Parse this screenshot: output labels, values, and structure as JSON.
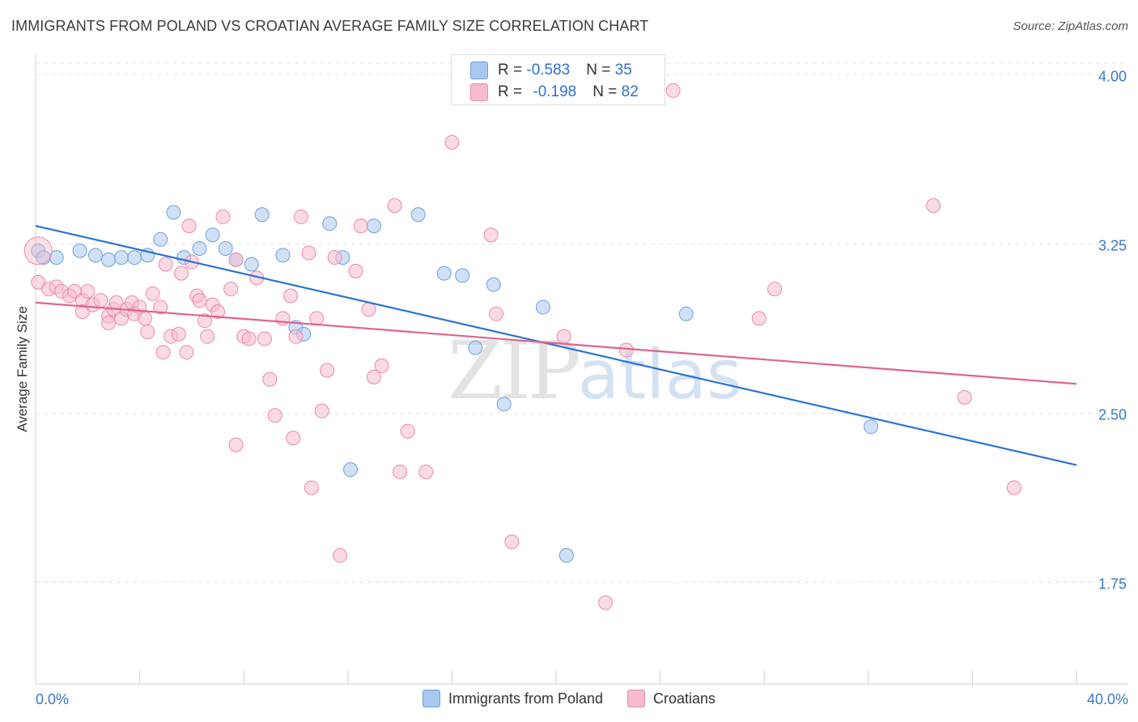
{
  "title": "IMMIGRANTS FROM POLAND VS CROATIAN AVERAGE FAMILY SIZE CORRELATION CHART",
  "source": "Source: ZipAtlas.com",
  "watermark": {
    "part1": "ZIP",
    "part2": "atlas"
  },
  "stats": [
    {
      "r_label": "R = ",
      "r_value": "-0.583",
      "n_label": "N = ",
      "n_value": "35"
    },
    {
      "r_label": "R = ",
      "r_value": "-0.198",
      "n_label": "N = ",
      "n_value": "82"
    }
  ],
  "colors": {
    "poland_fill": "#a9c8ef",
    "poland_stroke": "#6e9fde",
    "poland_line": "#2b73d2",
    "croatian_fill": "#f5bccf",
    "croatian_stroke": "#e98aaa",
    "croatian_line": "#e0628f",
    "tick_label": "#3b78cc",
    "grid": "#e3e3e3"
  },
  "chart_data": {
    "type": "scatter",
    "title": "IMMIGRANTS FROM POLAND VS CROATIAN AVERAGE FAMILY SIZE CORRELATION CHART",
    "xlabel": "",
    "ylabel": "Average Family Size",
    "xlim": [
      0,
      40
    ],
    "ylim": [
      1.3,
      4.08
    ],
    "x_tick_labels": [
      "0.0%",
      "40.0%"
    ],
    "y_ticks": [
      1.75,
      2.5,
      3.25,
      4.0
    ],
    "y_tick_labels": [
      "1.75",
      "2.50",
      "3.25",
      "4.00"
    ],
    "grid": "horizontal dashed",
    "legend": "bottom-center",
    "series": [
      {
        "name": "Immigrants from Poland",
        "color": "#a9c8ef",
        "trend": {
          "x": [
            0,
            40
          ],
          "y": [
            3.33,
            2.27
          ]
        },
        "points": [
          [
            0.1,
            3.22
          ],
          [
            0.8,
            3.19
          ],
          [
            1.7,
            3.22
          ],
          [
            2.3,
            3.2
          ],
          [
            2.8,
            3.18
          ],
          [
            3.3,
            3.19
          ],
          [
            3.8,
            3.19
          ],
          [
            4.3,
            3.2
          ],
          [
            4.8,
            3.27
          ],
          [
            5.3,
            3.39
          ],
          [
            5.7,
            3.19
          ],
          [
            6.3,
            3.23
          ],
          [
            6.8,
            3.29
          ],
          [
            7.3,
            3.23
          ],
          [
            7.7,
            3.18
          ],
          [
            8.3,
            3.16
          ],
          [
            8.7,
            3.38
          ],
          [
            9.5,
            3.2
          ],
          [
            10.0,
            2.88
          ],
          [
            10.3,
            2.85
          ],
          [
            11.3,
            3.34
          ],
          [
            11.8,
            3.19
          ],
          [
            13.0,
            3.33
          ],
          [
            14.7,
            3.38
          ],
          [
            15.7,
            3.12
          ],
          [
            16.4,
            3.11
          ],
          [
            16.9,
            2.79
          ],
          [
            17.6,
            3.07
          ],
          [
            18.0,
            2.54
          ],
          [
            19.5,
            2.97
          ],
          [
            20.4,
            1.87
          ],
          [
            25.0,
            2.94
          ],
          [
            32.1,
            2.44
          ],
          [
            12.1,
            2.25
          ],
          [
            0.3,
            3.19
          ]
        ]
      },
      {
        "name": "Croatians",
        "color": "#f5bccf",
        "trend": {
          "x": [
            0,
            40
          ],
          "y": [
            2.99,
            2.63
          ]
        },
        "points": [
          [
            0.1,
            3.08
          ],
          [
            0.5,
            3.05
          ],
          [
            0.8,
            3.06
          ],
          [
            1.0,
            3.04
          ],
          [
            1.3,
            3.02
          ],
          [
            1.5,
            3.04
          ],
          [
            1.8,
            3.0
          ],
          [
            1.8,
            2.95
          ],
          [
            2.0,
            3.04
          ],
          [
            2.2,
            2.98
          ],
          [
            2.5,
            3.0
          ],
          [
            2.8,
            2.93
          ],
          [
            2.8,
            2.9
          ],
          [
            3.0,
            2.96
          ],
          [
            3.1,
            2.99
          ],
          [
            3.3,
            2.92
          ],
          [
            3.5,
            2.96
          ],
          [
            3.7,
            2.99
          ],
          [
            3.8,
            2.94
          ],
          [
            4.0,
            2.97
          ],
          [
            4.2,
            2.92
          ],
          [
            4.3,
            2.86
          ],
          [
            4.5,
            3.03
          ],
          [
            4.8,
            2.97
          ],
          [
            5.0,
            3.16
          ],
          [
            5.2,
            2.84
          ],
          [
            5.5,
            2.85
          ],
          [
            5.6,
            3.12
          ],
          [
            5.8,
            2.77
          ],
          [
            6.0,
            3.17
          ],
          [
            6.2,
            3.02
          ],
          [
            6.3,
            3.0
          ],
          [
            6.5,
            2.91
          ],
          [
            6.8,
            2.98
          ],
          [
            7.0,
            2.95
          ],
          [
            7.2,
            3.37
          ],
          [
            7.5,
            3.05
          ],
          [
            7.7,
            3.18
          ],
          [
            8.0,
            2.84
          ],
          [
            8.2,
            2.83
          ],
          [
            8.5,
            3.1
          ],
          [
            8.8,
            2.83
          ],
          [
            9.0,
            2.65
          ],
          [
            9.2,
            2.49
          ],
          [
            9.5,
            2.92
          ],
          [
            9.8,
            3.02
          ],
          [
            10.0,
            2.84
          ],
          [
            10.2,
            3.37
          ],
          [
            10.5,
            3.21
          ],
          [
            10.8,
            2.92
          ],
          [
            11.0,
            2.51
          ],
          [
            11.2,
            2.69
          ],
          [
            11.5,
            3.19
          ],
          [
            11.7,
            1.87
          ],
          [
            12.3,
            3.13
          ],
          [
            12.5,
            3.33
          ],
          [
            12.8,
            2.96
          ],
          [
            13.0,
            2.66
          ],
          [
            13.3,
            2.71
          ],
          [
            13.8,
            3.42
          ],
          [
            14.0,
            2.24
          ],
          [
            14.3,
            2.42
          ],
          [
            15.0,
            2.24
          ],
          [
            16.0,
            3.7
          ],
          [
            17.5,
            3.29
          ],
          [
            17.7,
            2.94
          ],
          [
            18.3,
            1.93
          ],
          [
            20.3,
            2.84
          ],
          [
            21.9,
            1.66
          ],
          [
            22.7,
            2.78
          ],
          [
            24.5,
            3.93
          ],
          [
            27.8,
            2.92
          ],
          [
            28.4,
            3.05
          ],
          [
            34.5,
            3.42
          ],
          [
            35.7,
            2.57
          ],
          [
            37.6,
            2.17
          ],
          [
            10.6,
            2.17
          ],
          [
            7.7,
            2.36
          ],
          [
            9.9,
            2.39
          ],
          [
            6.6,
            2.84
          ],
          [
            4.9,
            2.77
          ],
          [
            5.9,
            3.33
          ]
        ]
      }
    ]
  }
}
